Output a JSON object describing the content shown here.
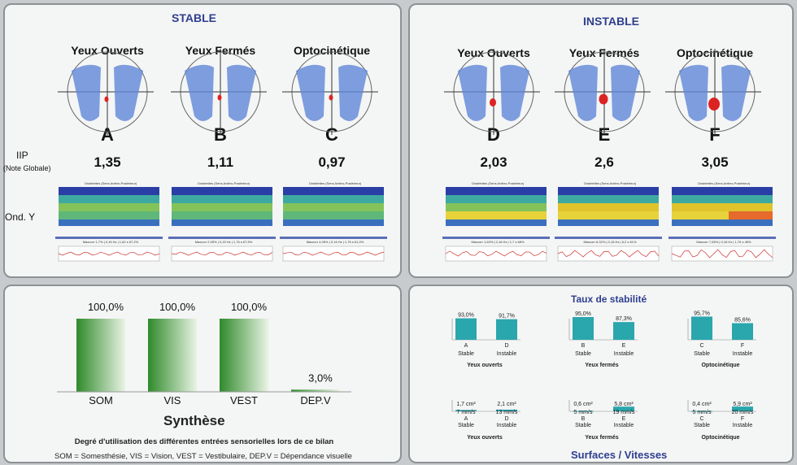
{
  "stable": {
    "title": "STABLE",
    "columns": [
      {
        "title": "Yeux Ouverts",
        "letter": "A",
        "iip": "1,35",
        "spec": "Ondelettes (Sens Antéro-Postérieur)",
        "trace": "Maxcorr 1,7% | 0,16 Hz | 1,62 s 67,2%"
      },
      {
        "title": "Yeux Fermés",
        "letter": "B",
        "iip": "1,11",
        "spec": "Ondelettes (Sens Antéro-Postérieur)",
        "trace": "Maxcorr 2,05% | 0,15 Hz | 1,76 s 67,5%"
      },
      {
        "title": "Optocinétique",
        "letter": "C",
        "iip": "0,97",
        "spec": "Ondelettes (Sens Antéro-Postérieur)",
        "trace": "Maxcorr 4,05% | 0,16 Hz | 1,76 s 61,0%"
      }
    ]
  },
  "instable": {
    "title": "INSTABLE",
    "columns": [
      {
        "title": "Yeux Ouverts",
        "letter": "D",
        "iip": "2,03",
        "spec": "Ondelettes (Sens Antéro-Postérieur)",
        "trace": "Maxcorr 1,63% | 0,16 Hz | 1,7 s 68%"
      },
      {
        "title": "Yeux Fermés",
        "letter": "E",
        "iip": "2,6",
        "spec": "Ondelettes (Sens Antéro-Postérieur)",
        "trace": "Maxcorr 6,32% | 0,16 Hz | 6,2 s 61%"
      },
      {
        "title": "Optocinétique",
        "letter": "F",
        "iip": "3,05",
        "spec": "Ondelettes (Sens Antéro-Postérieur)",
        "trace": "Maxcorr 7,65% | 0,16 Hz | 1,76 s 46%"
      }
    ]
  },
  "labels": {
    "iip": "IIP",
    "note": "(Note Globale)",
    "ond": "Ond. Y"
  },
  "synthese": {
    "title": "Synthèse",
    "subtitle": "Degré d'utilisation des différentes entrées sensorielles lors de ce bilan",
    "legend": "SOM = Somesthésie, VIS = Vision, VEST = Vestibulaire, DEP.V = Dépendance visuelle"
  },
  "taux": {
    "title": "Taux de stabilité",
    "bottom_title": "Surfaces / Vitesses",
    "groups": [
      {
        "name": "Yeux ouverts",
        "bars": [
          {
            "letter": "A",
            "cond": "Stable",
            "value": 93.0,
            "label": "93,0%"
          },
          {
            "letter": "D",
            "cond": "Instable",
            "value": 91.7,
            "label": "91,7%"
          }
        ],
        "surf": [
          {
            "letter": "A",
            "cond": "Stable",
            "surface": "1,7 cm²",
            "speed": "7 mm/s",
            "value": 1.7
          },
          {
            "letter": "D",
            "cond": "Instable",
            "surface": "2,1 cm²",
            "speed": "13 mm/s",
            "value": 2.1
          }
        ]
      },
      {
        "name": "Yeux fermés",
        "bars": [
          {
            "letter": "B",
            "cond": "Stable",
            "value": 95.0,
            "label": "95,0%"
          },
          {
            "letter": "E",
            "cond": "Instable",
            "value": 87.3,
            "label": "87,3%"
          }
        ],
        "surf": [
          {
            "letter": "B",
            "cond": "Stable",
            "surface": "0,6 cm²",
            "speed": "5 mm/s",
            "value": 0.6
          },
          {
            "letter": "E",
            "cond": "Instable",
            "surface": "5,8 cm²",
            "speed": "19 mm/s",
            "value": 5.8
          }
        ]
      },
      {
        "name": "Optocinétique",
        "bars": [
          {
            "letter": "C",
            "cond": "Stable",
            "value": 95.7,
            "label": "95,7%"
          },
          {
            "letter": "F",
            "cond": "Instable",
            "value": 85.6,
            "label": "85,6%"
          }
        ],
        "surf": [
          {
            "letter": "C",
            "cond": "Stable",
            "surface": "0,4 cm²",
            "speed": "5 mm/s",
            "value": 0.4
          },
          {
            "letter": "F",
            "cond": "Instable",
            "surface": "5,9 cm²",
            "speed": "20 mm/s",
            "value": 5.9
          }
        ]
      }
    ]
  },
  "chart_data": {
    "type": "bar",
    "categories": [
      "SOM",
      "VIS",
      "VEST",
      "DEP.V"
    ],
    "values": [
      100.0,
      100.0,
      100.0,
      3.0
    ],
    "value_labels": [
      "100,0%",
      "100,0%",
      "100,0%",
      "3,0%"
    ],
    "ylim": [
      0,
      100
    ],
    "color": "#3e9a3a"
  },
  "colors": {
    "title": "#2f3f8f",
    "foot": "#6f94dd",
    "teal": "#2aa6ad",
    "green": "#3e9a3a"
  }
}
